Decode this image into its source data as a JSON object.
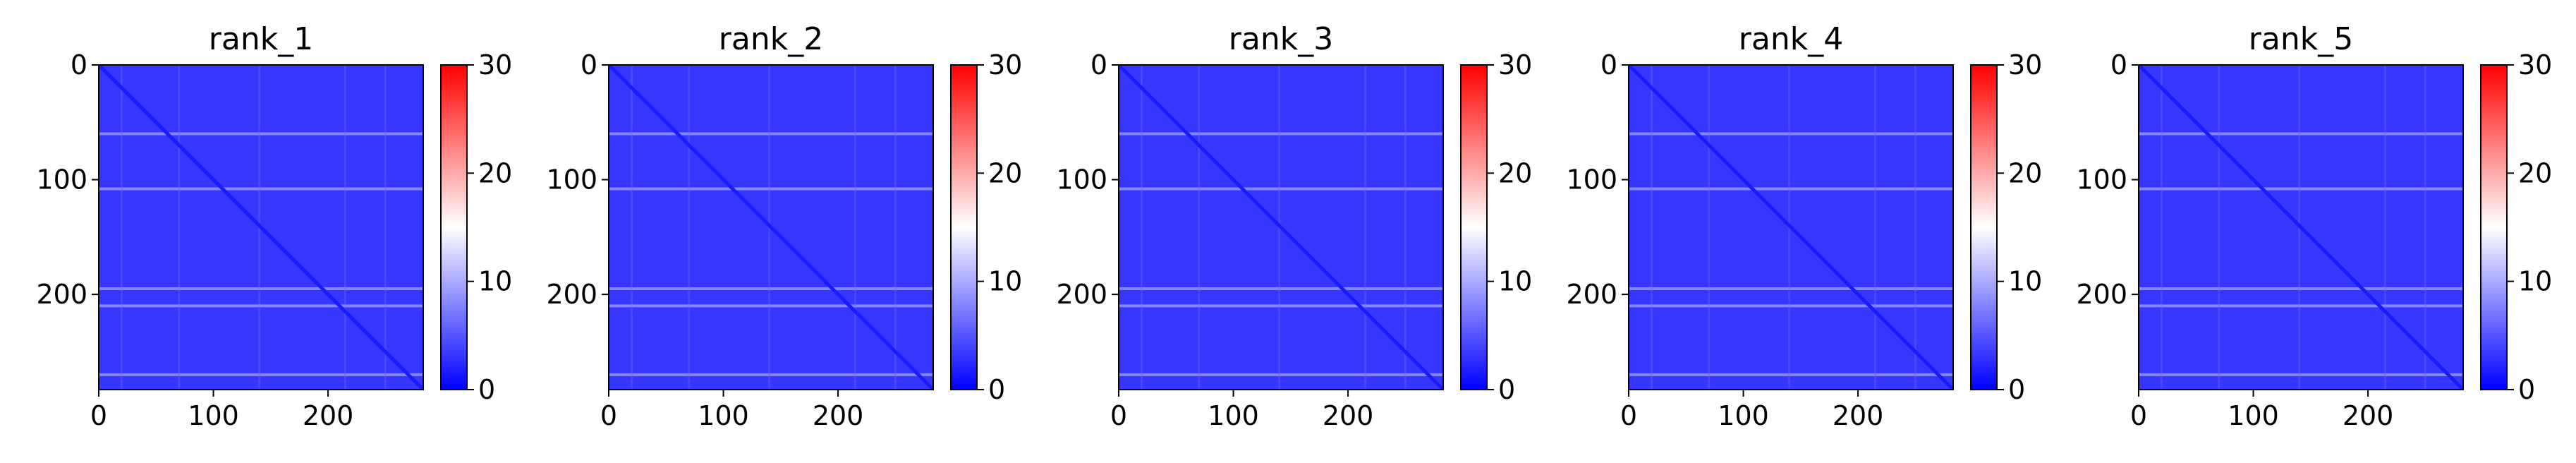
{
  "chart_data": {
    "type": "heatmap",
    "colormap": {
      "name": "bwr",
      "stops": [
        "#0000ff",
        "#ffffff",
        "#ff0000"
      ],
      "vmin": 0,
      "vmax": 30,
      "colorbar_ticks": [
        "0",
        "10",
        "20",
        "30"
      ]
    },
    "matrix_size": [
      283,
      283
    ],
    "x_ticks": [
      "0",
      "100",
      "200"
    ],
    "y_ticks": [
      "0",
      "100",
      "200"
    ],
    "grid": false,
    "panels": [
      {
        "title": "rank_1",
        "diagonal_value": 1.5,
        "background_value": 3.2,
        "bright_rows": [
          60,
          108,
          195,
          210,
          270
        ]
      },
      {
        "title": "rank_2",
        "diagonal_value": 1.5,
        "background_value": 3.2,
        "bright_rows": [
          60,
          108,
          195,
          210,
          270
        ]
      },
      {
        "title": "rank_3",
        "diagonal_value": 1.5,
        "background_value": 3.2,
        "bright_rows": [
          60,
          108,
          195,
          210,
          270
        ]
      },
      {
        "title": "rank_4",
        "diagonal_value": 1.5,
        "background_value": 3.2,
        "bright_rows": [
          60,
          108,
          195,
          210,
          270
        ]
      },
      {
        "title": "rank_5",
        "diagonal_value": 1.5,
        "background_value": 3.2,
        "bright_rows": [
          60,
          108,
          195,
          210,
          270
        ]
      }
    ]
  }
}
